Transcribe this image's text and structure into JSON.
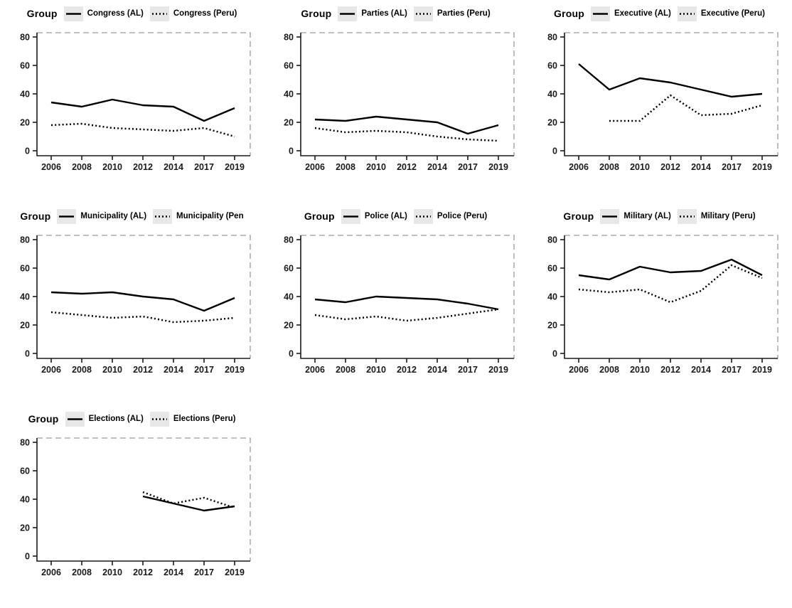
{
  "legend_title": "Group",
  "styles": {
    "line_color": "#000000",
    "legend_key_bg": "#e7e7e7",
    "panel_dash_border_color": "#9a9a9a",
    "axis_line_color": "#1a1a1a",
    "tick_label_color": "#1a1a1a",
    "background": "#ffffff"
  },
  "axis": {
    "y_ticks": [
      0,
      20,
      40,
      60,
      80
    ],
    "ylim": [
      0,
      80
    ],
    "x_tick_labels": [
      "2006",
      "2008",
      "2010",
      "2012",
      "2014",
      "2017",
      "2019"
    ],
    "grid": "off",
    "legend_position": "top"
  },
  "chart_data": [
    {
      "type": "line",
      "facet": "Congress",
      "categories": [
        "2006",
        "2008",
        "2010",
        "2012",
        "2014",
        "2017",
        "2019"
      ],
      "ylim": [
        0,
        80
      ],
      "series": [
        {
          "name": "Congress (AL)",
          "style": "solid",
          "values": [
            34,
            31,
            36,
            32,
            31,
            21,
            30
          ]
        },
        {
          "name": "Congress (Peru)",
          "style": "dotted",
          "values": [
            18,
            19,
            16,
            15,
            14,
            16,
            10
          ]
        }
      ]
    },
    {
      "type": "line",
      "facet": "Parties",
      "categories": [
        "2006",
        "2008",
        "2010",
        "2012",
        "2014",
        "2017",
        "2019"
      ],
      "ylim": [
        0,
        80
      ],
      "series": [
        {
          "name": "Parties (AL)",
          "style": "solid",
          "values": [
            22,
            21,
            24,
            22,
            20,
            12,
            18
          ]
        },
        {
          "name": "Parties (Peru)",
          "style": "dotted",
          "values": [
            16,
            13,
            14,
            13,
            10,
            8,
            7
          ]
        }
      ]
    },
    {
      "type": "line",
      "facet": "Executive",
      "categories": [
        "2006",
        "2008",
        "2010",
        "2012",
        "2014",
        "2017",
        "2019"
      ],
      "ylim": [
        0,
        80
      ],
      "series": [
        {
          "name": "Executive (AL)",
          "style": "solid",
          "values": [
            61,
            43,
            51,
            48,
            43,
            38,
            40
          ]
        },
        {
          "name": "Executive (Peru)",
          "style": "dotted",
          "values": [
            null,
            21,
            21,
            39,
            25,
            26,
            32
          ]
        }
      ]
    },
    {
      "type": "line",
      "facet": "Municipality",
      "categories": [
        "2006",
        "2008",
        "2010",
        "2012",
        "2014",
        "2017",
        "2019"
      ],
      "ylim": [
        0,
        80
      ],
      "series": [
        {
          "name": "Municipality (AL)",
          "style": "solid",
          "values": [
            43,
            42,
            43,
            40,
            38,
            30,
            39
          ]
        },
        {
          "name": "Municipality (Pen",
          "style": "dotted",
          "values": [
            29,
            27,
            25,
            26,
            22,
            23,
            25
          ]
        }
      ]
    },
    {
      "type": "line",
      "facet": "Police",
      "categories": [
        "2006",
        "2008",
        "2010",
        "2012",
        "2014",
        "2017",
        "2019"
      ],
      "ylim": [
        0,
        80
      ],
      "series": [
        {
          "name": "Police (AL)",
          "style": "solid",
          "values": [
            38,
            36,
            40,
            39,
            38,
            35,
            31
          ]
        },
        {
          "name": "Police (Peru)",
          "style": "dotted",
          "values": [
            27,
            24,
            26,
            23,
            25,
            28,
            31
          ]
        }
      ]
    },
    {
      "type": "line",
      "facet": "Military",
      "categories": [
        "2006",
        "2008",
        "2010",
        "2012",
        "2014",
        "2017",
        "2019"
      ],
      "ylim": [
        0,
        80
      ],
      "series": [
        {
          "name": "Military (AL)",
          "style": "solid",
          "values": [
            55,
            52,
            61,
            57,
            58,
            66,
            55
          ]
        },
        {
          "name": "Military (Peru)",
          "style": "dotted",
          "values": [
            45,
            43,
            45,
            36,
            44,
            62,
            53
          ]
        }
      ]
    },
    {
      "type": "line",
      "facet": "Elections",
      "categories": [
        "2006",
        "2008",
        "2010",
        "2012",
        "2014",
        "2017",
        "2019"
      ],
      "ylim": [
        0,
        80
      ],
      "series": [
        {
          "name": "Elections (AL)",
          "style": "solid",
          "values": [
            null,
            null,
            null,
            42,
            37,
            32,
            35
          ]
        },
        {
          "name": "Elections (Peru)",
          "style": "dotted",
          "values": [
            null,
            null,
            null,
            45,
            37,
            41,
            34
          ]
        }
      ]
    }
  ]
}
